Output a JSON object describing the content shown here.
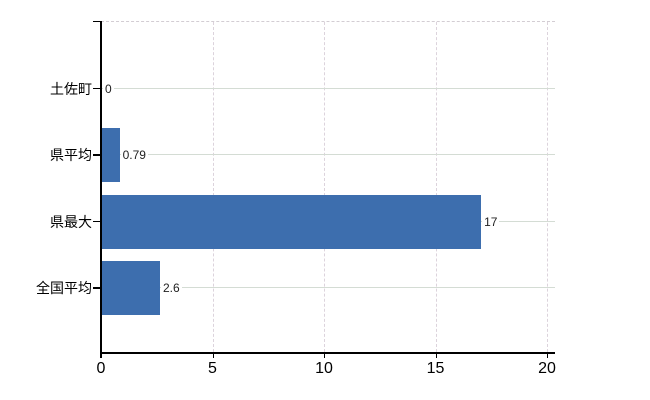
{
  "chart_data": {
    "type": "bar",
    "orientation": "horizontal",
    "title": "",
    "xlabel": "",
    "ylabel": "",
    "categories": [
      "土佐町",
      "県平均",
      "県最大",
      "全国平均"
    ],
    "values": [
      0,
      0.79,
      17,
      2.6
    ],
    "value_labels": [
      "0",
      "0.79",
      "17",
      "2.6"
    ],
    "x_ticks": [
      0,
      5,
      10,
      15,
      20
    ],
    "x_tick_labels": [
      "0",
      "5",
      "10",
      "15",
      "20"
    ],
    "xlim": [
      0,
      20
    ],
    "grid": "on",
    "legend": "none",
    "colors": {
      "bar": "#3d6eae",
      "h_gridline": "#d4dcd4",
      "v_gridline": "#dcd3dc",
      "top_border": "#d3cdd3",
      "axis": "#000000",
      "value_label_text": "#222222",
      "tick_label_text": "#000000"
    }
  }
}
